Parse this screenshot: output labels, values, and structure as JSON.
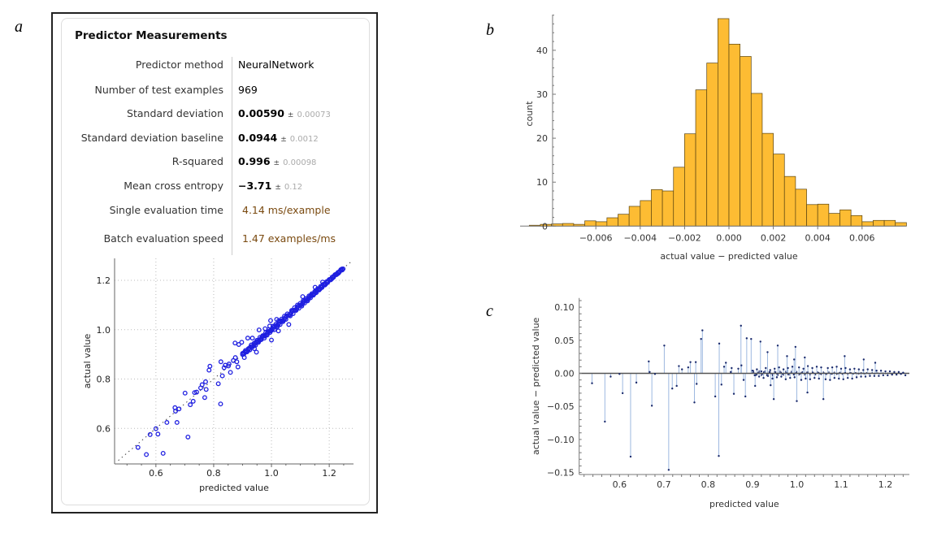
{
  "panel_labels": {
    "a": "a",
    "b": "b",
    "c": "c"
  },
  "predictor_measurements": {
    "title": "Predictor Measurements",
    "rows": [
      {
        "label": "Predictor method",
        "value": "NeuralNetwork"
      },
      {
        "label": "Number of test examples",
        "value": "969"
      },
      {
        "label": "Standard deviation",
        "value": "0.00590",
        "pm": "±",
        "uncertainty": "0.00073"
      },
      {
        "label": "Standard deviation baseline",
        "value": "0.0944",
        "pm": "±",
        "uncertainty": "0.0012"
      },
      {
        "label": "R-squared",
        "value": "0.996",
        "pm": "±",
        "uncertainty": "0.00098"
      },
      {
        "label": "Mean cross entropy",
        "value": "−3.71",
        "pm": "±",
        "uncertainty": "0.12"
      },
      {
        "label": "Single evaluation time",
        "value": "4.14 ms/example"
      },
      {
        "label": "Batch evaluation speed",
        "value": "1.47 examples/ms"
      }
    ]
  },
  "chart_data": [
    {
      "id": "scatter",
      "type": "scatter",
      "xlabel": "predicted value",
      "ylabel": "actual value",
      "xlim": [
        0.457,
        1.284
      ],
      "ylim": [
        0.456,
        1.289
      ],
      "xticks": [
        "0.6",
        "0.8",
        "1.0",
        "1.2"
      ],
      "yticks": [
        "0.6",
        "0.8",
        "1.0",
        "1.2"
      ],
      "grid": true,
      "reference_line": "y = x (dotted)",
      "marker_color": "#1f1fe0",
      "note": "points = predicted value, actual value = predicted + residual (shared with residual plot)"
    },
    {
      "id": "histogram",
      "type": "bar",
      "xlabel": "actual value − predicted value",
      "ylabel": "count",
      "bin_start": -0.009,
      "bin_width": 0.0005,
      "counts": [
        0.2,
        0.4,
        0.5,
        0.6,
        0.4,
        1.2,
        1.0,
        1.9,
        2.7,
        4.5,
        5.8,
        8.3,
        8.0,
        13.4,
        21,
        31,
        37.1,
        47.2,
        41.4,
        38.6,
        30.2,
        21.1,
        16.4,
        11.3,
        8.4,
        4.9,
        5.0,
        2.9,
        3.7,
        2.4,
        1.0,
        1.3,
        1.3,
        0.8
      ],
      "xlim": [
        -0.0094,
        0.008
      ],
      "ylim": [
        0,
        48
      ],
      "xticks": [
        "-0.006",
        "-0.004",
        "-0.002",
        "0.000",
        "0.002",
        "0.004",
        "0.006"
      ],
      "xtick_labels": [
        "−0.006",
        "−0.004",
        "−0.002",
        "0.000",
        "0.002",
        "0.004",
        "0.006"
      ],
      "yticks": [
        "0",
        "10",
        "20",
        "30",
        "40"
      ],
      "bar_color": "#fdbc33"
    },
    {
      "id": "residuals",
      "type": "scatter",
      "xlabel": "predicted value",
      "ylabel": "actual value − predicted value",
      "xlim": [
        0.509,
        1.254
      ],
      "ylim": [
        -0.153,
        0.114
      ],
      "xticks": [
        "0.6",
        "0.7",
        "0.8",
        "0.9",
        "1.0",
        "1.1",
        "1.2"
      ],
      "yticks": [
        "0.10",
        "0.05",
        "0.00",
        "-0.05",
        "-0.10",
        "-0.15"
      ],
      "ytick_labels": [
        "0.10",
        "0.05",
        "0.00",
        "−0.05",
        "−0.10",
        "−0.15"
      ],
      "stem_color": "#9db8e0",
      "point_color": "#1a2a6c",
      "points": [
        [
          0.538,
          -0.015
        ],
        [
          0.567,
          -0.073
        ],
        [
          0.58,
          -0.005
        ],
        [
          0.6,
          -0.001
        ],
        [
          0.607,
          -0.03
        ],
        [
          0.625,
          -0.126
        ],
        [
          0.638,
          -0.014
        ],
        [
          0.666,
          0.018
        ],
        [
          0.668,
          0.002
        ],
        [
          0.673,
          -0.049
        ],
        [
          0.68,
          -0.001
        ],
        [
          0.701,
          0.042
        ],
        [
          0.711,
          -0.146
        ],
        [
          0.719,
          -0.023
        ],
        [
          0.729,
          -0.019
        ],
        [
          0.734,
          0.011
        ],
        [
          0.741,
          0.006
        ],
        [
          0.755,
          0.009
        ],
        [
          0.76,
          0.017
        ],
        [
          0.769,
          -0.044
        ],
        [
          0.772,
          0.017
        ],
        [
          0.774,
          -0.016
        ],
        [
          0.784,
          0.052
        ],
        [
          0.787,
          0.065
        ],
        [
          0.816,
          -0.035
        ],
        [
          0.824,
          -0.125
        ],
        [
          0.825,
          0.045
        ],
        [
          0.83,
          -0.017
        ],
        [
          0.836,
          0.01
        ],
        [
          0.84,
          0.016
        ],
        [
          0.851,
          0.002
        ],
        [
          0.853,
          0.008
        ],
        [
          0.858,
          -0.031
        ],
        [
          0.868,
          0.007
        ],
        [
          0.874,
          0.072
        ],
        [
          0.875,
          0.012
        ],
        [
          0.88,
          -0.01
        ],
        [
          0.884,
          -0.035
        ],
        [
          0.887,
          0.053
        ],
        [
          0.897,
          0.052
        ],
        [
          0.906,
          -0.019
        ],
        [
          0.918,
          0.048
        ],
        [
          0.934,
          0.032
        ],
        [
          0.941,
          -0.018
        ],
        [
          0.948,
          -0.039
        ],
        [
          0.957,
          0.042
        ],
        [
          0.978,
          0.026
        ],
        [
          0.994,
          0.021
        ],
        [
          0.997,
          0.04
        ],
        [
          1.0,
          -0.042
        ],
        [
          1.018,
          0.024
        ],
        [
          1.024,
          -0.029
        ],
        [
          1.06,
          -0.039
        ],
        [
          1.108,
          0.026
        ],
        [
          1.151,
          0.021
        ],
        [
          1.177,
          0.016
        ],
        [
          0.9,
          0.004
        ],
        [
          0.905,
          -0.003
        ],
        [
          0.91,
          0.006
        ],
        [
          0.915,
          -0.005
        ],
        [
          0.92,
          0.003
        ],
        [
          0.925,
          -0.007
        ],
        [
          0.93,
          0.008
        ],
        [
          0.935,
          -0.004
        ],
        [
          0.94,
          0.005
        ],
        [
          0.945,
          -0.008
        ],
        [
          0.95,
          0.007
        ],
        [
          0.955,
          -0.006
        ],
        [
          0.96,
          0.009
        ],
        [
          0.965,
          -0.005
        ],
        [
          0.97,
          0.006
        ],
        [
          0.975,
          -0.009
        ],
        [
          0.98,
          0.008
        ],
        [
          0.985,
          -0.007
        ],
        [
          0.99,
          0.01
        ],
        [
          0.995,
          -0.006
        ],
        [
          1.005,
          0.009
        ],
        [
          1.01,
          -0.01
        ],
        [
          1.015,
          0.007
        ],
        [
          1.02,
          -0.008
        ],
        [
          1.025,
          0.011
        ],
        [
          1.03,
          -0.009
        ],
        [
          1.035,
          0.008
        ],
        [
          1.04,
          -0.007
        ],
        [
          1.045,
          0.01
        ],
        [
          1.05,
          -0.008
        ],
        [
          1.055,
          0.009
        ],
        [
          1.065,
          -0.009
        ],
        [
          1.07,
          0.008
        ],
        [
          1.075,
          -0.01
        ],
        [
          1.08,
          0.009
        ],
        [
          1.085,
          -0.007
        ],
        [
          1.09,
          0.01
        ],
        [
          1.095,
          -0.008
        ],
        [
          1.1,
          0.007
        ],
        [
          1.105,
          -0.009
        ],
        [
          1.11,
          0.008
        ],
        [
          1.115,
          -0.007
        ],
        [
          1.12,
          0.006
        ],
        [
          1.125,
          -0.008
        ],
        [
          1.13,
          0.007
        ],
        [
          1.135,
          -0.006
        ],
        [
          1.14,
          0.006
        ],
        [
          1.145,
          -0.005
        ],
        [
          1.15,
          0.005
        ],
        [
          1.155,
          -0.005
        ],
        [
          1.16,
          0.006
        ],
        [
          1.165,
          -0.004
        ],
        [
          1.17,
          0.005
        ],
        [
          1.175,
          -0.004
        ],
        [
          1.18,
          0.004
        ],
        [
          1.185,
          -0.004
        ],
        [
          1.19,
          0.004
        ],
        [
          1.195,
          -0.003
        ],
        [
          1.2,
          0.003
        ],
        [
          1.205,
          -0.003
        ],
        [
          1.21,
          0.003
        ],
        [
          1.215,
          -0.002
        ],
        [
          1.22,
          0.002
        ],
        [
          1.225,
          -0.002
        ],
        [
          1.23,
          0.002
        ],
        [
          1.235,
          -0.001
        ],
        [
          1.24,
          0.001
        ],
        [
          1.245,
          -0.003
        ]
      ]
    }
  ]
}
